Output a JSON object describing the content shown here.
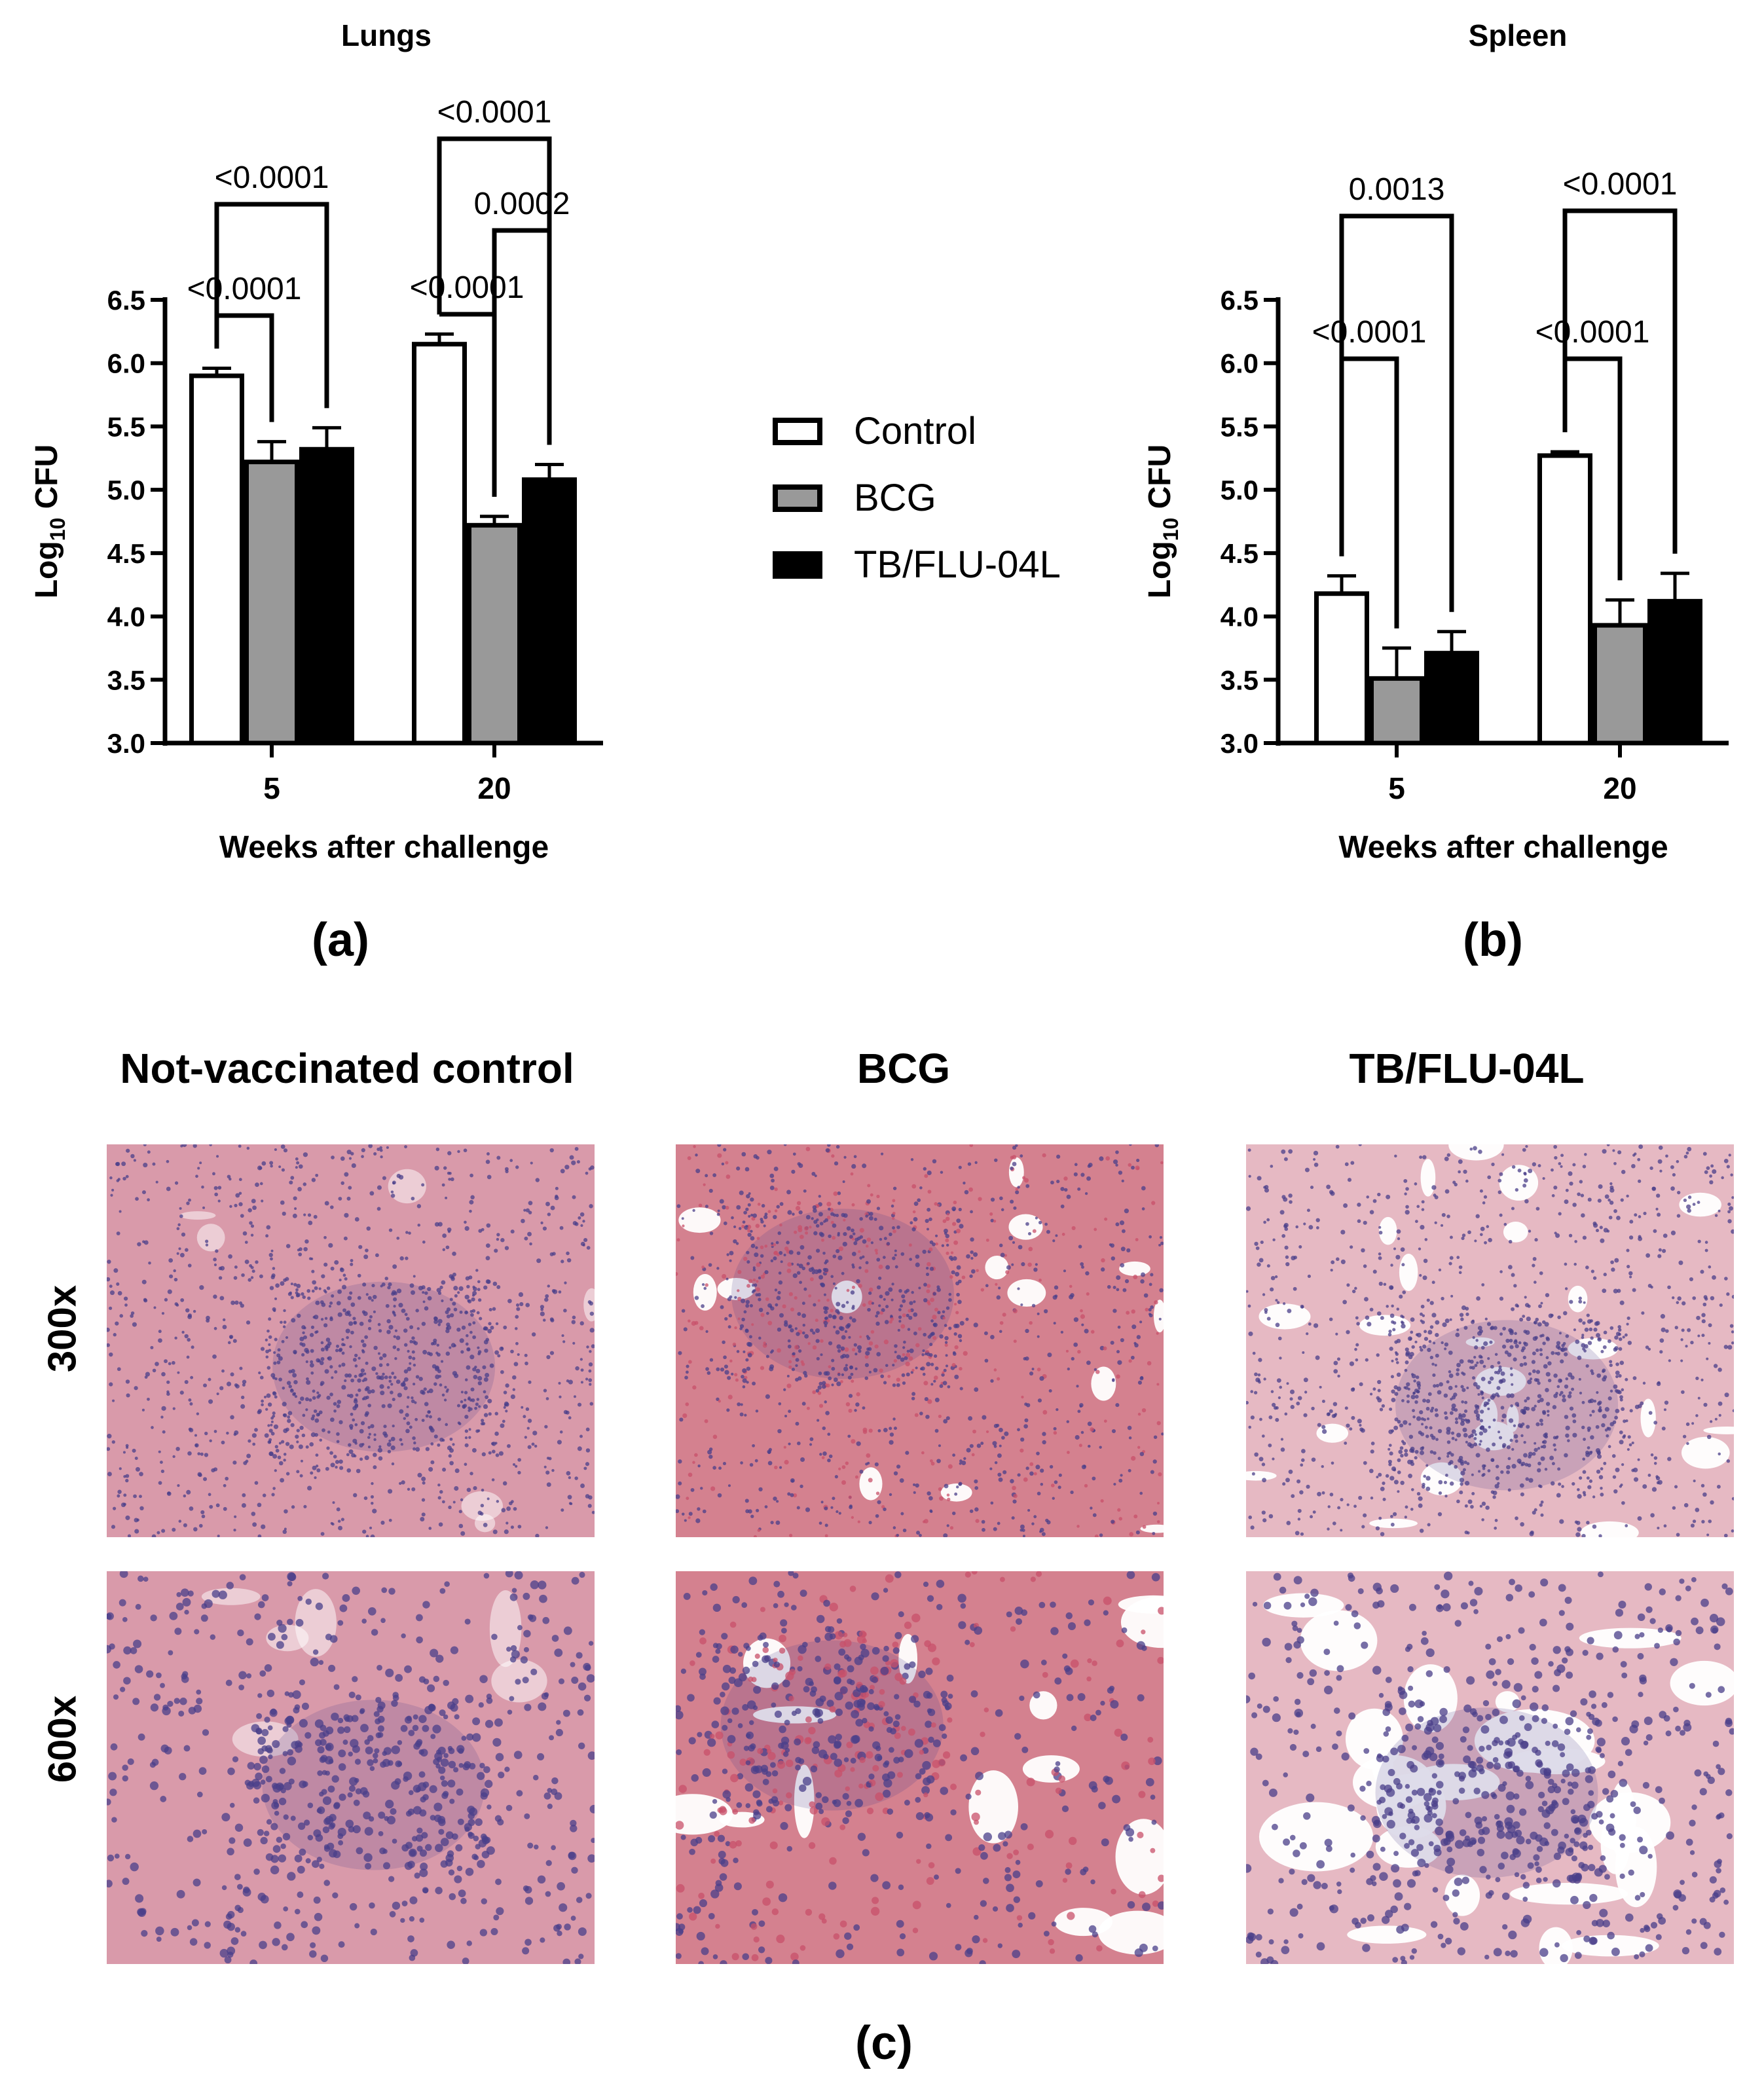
{
  "chart_data": [
    {
      "type": "bar",
      "title": "Lungs",
      "xlabel": "Weeks after challenge",
      "ylabel": "Log10 CFU",
      "ylim": [
        3.0,
        6.5
      ],
      "yticks": [
        "3.0",
        "3.5",
        "4.0",
        "4.5",
        "5.0",
        "5.5",
        "6.0",
        "6.5"
      ],
      "categories": [
        "5",
        "20"
      ],
      "series": [
        {
          "name": "Control",
          "values": [
            5.9,
            6.15
          ],
          "errors": [
            0.06,
            0.08
          ]
        },
        {
          "name": "BCG",
          "values": [
            5.22,
            4.72
          ],
          "errors": [
            0.16,
            0.07
          ]
        },
        {
          "name": "TB/FLU-04L",
          "values": [
            5.32,
            5.08
          ],
          "errors": [
            0.17,
            0.12
          ]
        }
      ],
      "comparisons": [
        {
          "category": "5",
          "from": "Control",
          "to": "BCG",
          "label": "<0.0001"
        },
        {
          "category": "5",
          "from": "Control",
          "to": "TB/FLU-04L",
          "label": "<0.0001"
        },
        {
          "category": "20",
          "from": "Control",
          "to": "BCG",
          "label": "<0.0001"
        },
        {
          "category": "20",
          "from": "BCG",
          "to": "TB/FLU-04L",
          "label": "0.0002"
        },
        {
          "category": "20",
          "from": "Control",
          "to": "TB/FLU-04L",
          "label": "<0.0001"
        }
      ]
    },
    {
      "type": "bar",
      "title": "Spleen",
      "xlabel": "Weeks after challenge",
      "ylabel": "Log10 CFU",
      "ylim": [
        3.0,
        6.5
      ],
      "yticks": [
        "3.0",
        "3.5",
        "4.0",
        "4.5",
        "5.0",
        "5.5",
        "6.0",
        "6.5"
      ],
      "categories": [
        "5",
        "20"
      ],
      "series": [
        {
          "name": "Control",
          "values": [
            4.18,
            5.27
          ],
          "errors": [
            0.14,
            0.03
          ]
        },
        {
          "name": "BCG",
          "values": [
            3.51,
            3.93
          ],
          "errors": [
            0.24,
            0.2
          ]
        },
        {
          "name": "TB/FLU-04L",
          "values": [
            3.71,
            4.12
          ],
          "errors": [
            0.17,
            0.22
          ]
        }
      ],
      "comparisons": [
        {
          "category": "5",
          "from": "Control",
          "to": "BCG",
          "label": "<0.0001"
        },
        {
          "category": "5",
          "from": "Control",
          "to": "TB/FLU-04L",
          "label": "0.0013"
        },
        {
          "category": "20",
          "from": "Control",
          "to": "BCG",
          "label": "<0.0001"
        },
        {
          "category": "20",
          "from": "Control",
          "to": "TB/FLU-04L",
          "label": "<0.0001"
        }
      ]
    }
  ],
  "legend": [
    {
      "label": "Control",
      "color": "#ffffff"
    },
    {
      "label": "BCG",
      "color": "#999999"
    },
    {
      "label": "TB/FLU-04L",
      "color": "#000000"
    }
  ],
  "panels": {
    "a": "(a)",
    "b": "(b)",
    "c": "(c)"
  },
  "histology": {
    "columns": [
      "Not-vaccinated control",
      "BCG",
      "TB/FLU-04L"
    ],
    "rows": [
      "300x",
      "600x"
    ],
    "colors": {
      "stroma": "#d99aaa",
      "nuclei": "#4a3f8a",
      "airspace": "#ffffff",
      "blood": "#c8506a"
    }
  }
}
